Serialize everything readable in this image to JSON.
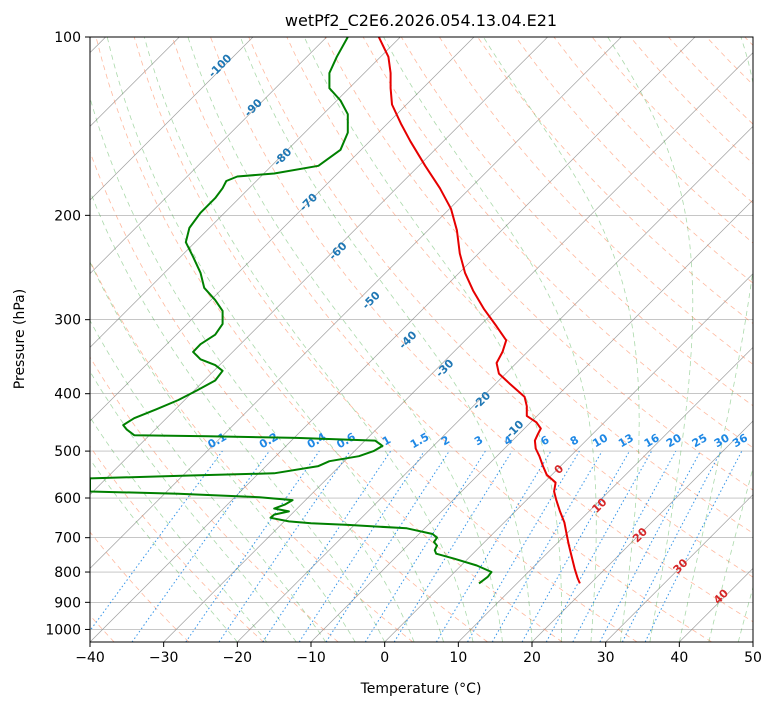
{
  "chart_data": {
    "type": "line",
    "title": "wetPf2_C2E6.2026.054.13.04.E21",
    "xlabel": "Temperature (°C)",
    "ylabel": "Pressure (hPa)",
    "xlim": [
      -40,
      50
    ],
    "ylim": [
      1050,
      100
    ],
    "y_scale": "log",
    "grid": true,
    "x_ticks": [
      "−40",
      "−30",
      "−20",
      "−10",
      "0",
      "10",
      "20",
      "30",
      "40",
      "50"
    ],
    "x_tick_values": [
      -40,
      -30,
      -20,
      -10,
      0,
      10,
      20,
      30,
      40,
      50
    ],
    "y_ticks": [
      "100",
      "200",
      "300",
      "400",
      "500",
      "600",
      "700",
      "800",
      "900",
      "1000"
    ],
    "y_tick_values": [
      100,
      200,
      300,
      400,
      500,
      600,
      700,
      800,
      900,
      1000
    ],
    "colors": {
      "temperature": "#e60000",
      "dewpoint": "#008000",
      "isotherm": "#808080",
      "dry_adiabat": "#ff7f50",
      "moist_adiabat": "#2ca02c",
      "mixing_ratio": "#1e88e5",
      "dry_label": "#1f77b4",
      "moist_label": "#d62728"
    },
    "series": [
      {
        "points": [
          [
            26.5,
            836
          ],
          [
            26.2,
            820
          ],
          [
            25.8,
            790
          ],
          [
            25.4,
            755
          ],
          [
            25.0,
            720
          ],
          [
            24.7,
            690
          ],
          [
            24.4,
            660
          ],
          [
            23.8,
            632
          ],
          [
            23.3,
            605
          ],
          [
            23.0,
            585
          ],
          [
            23.2,
            565
          ],
          [
            22.0,
            548
          ],
          [
            21.5,
            530
          ],
          [
            21.0,
            510
          ],
          [
            20.5,
            495
          ],
          [
            20.4,
            480
          ],
          [
            20.8,
            468
          ],
          [
            21.2,
            458
          ],
          [
            20.6,
            447
          ],
          [
            19.3,
            436
          ],
          [
            19.3,
            420
          ],
          [
            19.0,
            405
          ],
          [
            17.0,
            385
          ],
          [
            15.5,
            370
          ],
          [
            15.2,
            355
          ],
          [
            16.0,
            340
          ],
          [
            16.5,
            325
          ],
          [
            15.2,
            308
          ],
          [
            13.5,
            288
          ],
          [
            12.0,
            268
          ],
          [
            10.9,
            250
          ],
          [
            10.2,
            232
          ],
          [
            9.8,
            212
          ],
          [
            9.0,
            195
          ],
          [
            7.5,
            180
          ],
          [
            5.5,
            165
          ],
          [
            3.5,
            150
          ],
          [
            2.2,
            140
          ],
          [
            1.0,
            130
          ],
          [
            0.8,
            122
          ],
          [
            0.8,
            115
          ],
          [
            0.5,
            108
          ],
          [
            -0.8,
            100
          ]
        ]
      },
      {
        "points": [
          [
            12.8,
            836
          ],
          [
            14.0,
            815
          ],
          [
            14.5,
            800
          ],
          [
            12.5,
            780
          ],
          [
            9.5,
            760
          ],
          [
            7.0,
            745
          ],
          [
            6.8,
            735
          ],
          [
            7.1,
            722
          ],
          [
            6.7,
            712
          ],
          [
            7.1,
            700
          ],
          [
            6.5,
            690
          ],
          [
            3.0,
            675
          ],
          [
            -5.0,
            666
          ],
          [
            -10.0,
            662
          ],
          [
            -13.0,
            657
          ],
          [
            -15.5,
            648
          ],
          [
            -15.0,
            640
          ],
          [
            -13.0,
            632
          ],
          [
            -15.0,
            625
          ],
          [
            -13.5,
            615
          ],
          [
            -12.5,
            605
          ],
          [
            -17.0,
            598
          ],
          [
            -28.0,
            590
          ],
          [
            -40.0,
            585
          ],
          [
            -40.0,
            556
          ],
          [
            -27.0,
            550
          ],
          [
            -15.0,
            545
          ],
          [
            -9.0,
            530
          ],
          [
            -7.5,
            520
          ],
          [
            -3.5,
            510
          ],
          [
            -1.5,
            500
          ],
          [
            -0.3,
            490
          ],
          [
            -1.3,
            480
          ],
          [
            -12.0,
            475
          ],
          [
            -24.0,
            472
          ],
          [
            -34.0,
            470
          ],
          [
            -35.0,
            460
          ],
          [
            -35.5,
            452
          ],
          [
            -34.0,
            440
          ],
          [
            -31.0,
            425
          ],
          [
            -28.0,
            410
          ],
          [
            -25.5,
            395
          ],
          [
            -23.0,
            380
          ],
          [
            -22.0,
            366
          ],
          [
            -23.0,
            358
          ],
          [
            -25.0,
            350
          ],
          [
            -26.0,
            340
          ],
          [
            -25.0,
            330
          ],
          [
            -23.0,
            318
          ],
          [
            -22.0,
            305
          ],
          [
            -22.0,
            290
          ],
          [
            -23.0,
            278
          ],
          [
            -24.5,
            265
          ],
          [
            -25.0,
            250
          ],
          [
            -26.0,
            235
          ],
          [
            -27.0,
            222
          ],
          [
            -26.5,
            210
          ],
          [
            -25.0,
            198
          ],
          [
            -23.0,
            187
          ],
          [
            -22.0,
            180
          ],
          [
            -21.5,
            175
          ],
          [
            -20.0,
            172
          ],
          [
            -15.0,
            170
          ],
          [
            -9.0,
            165
          ],
          [
            -6.0,
            155
          ],
          [
            -5.0,
            145
          ],
          [
            -5.0,
            135
          ],
          [
            -6.0,
            128
          ],
          [
            -7.5,
            122
          ],
          [
            -7.5,
            115
          ],
          [
            -6.5,
            108
          ],
          [
            -5.0,
            100
          ]
        ]
      }
    ],
    "dry_adiabat_labels": [
      {
        "text": "-100",
        "x": -22.0,
        "y": 113
      },
      {
        "text": "-90",
        "x": -17.5,
        "y": 133
      },
      {
        "text": "-80",
        "x": -13.5,
        "y": 161
      },
      {
        "text": "-70",
        "x": -10.0,
        "y": 192
      },
      {
        "text": "-60",
        "x": -6.0,
        "y": 232
      },
      {
        "text": "-50",
        "x": -1.5,
        "y": 281
      },
      {
        "text": "-40",
        "x": 3.5,
        "y": 328
      },
      {
        "text": "-30",
        "x": 8.5,
        "y": 366
      },
      {
        "text": "-20",
        "x": 13.5,
        "y": 415
      },
      {
        "text": "-10",
        "x": 18.0,
        "y": 464
      }
    ],
    "moist_adiabat_labels": [
      {
        "text": "0",
        "x": 24.0,
        "y": 542
      },
      {
        "text": "10",
        "x": 29.5,
        "y": 624
      },
      {
        "text": "20",
        "x": 35.0,
        "y": 700
      },
      {
        "text": "30",
        "x": 40.5,
        "y": 790
      },
      {
        "text": "40",
        "x": 46.0,
        "y": 889
      }
    ],
    "mixing_ratio_labels": [
      {
        "text": "0.1",
        "x": -22.5,
        "y": 486
      },
      {
        "text": "0.2",
        "x": -15.5,
        "y": 486
      },
      {
        "text": "0.4",
        "x": -9.0,
        "y": 486
      },
      {
        "text": "0.6",
        "x": -5.0,
        "y": 486
      },
      {
        "text": "1",
        "x": 0.5,
        "y": 486
      },
      {
        "text": "1.5",
        "x": 5.0,
        "y": 486
      },
      {
        "text": "2",
        "x": 8.5,
        "y": 486
      },
      {
        "text": "3",
        "x": 13.0,
        "y": 486
      },
      {
        "text": "4",
        "x": 17.0,
        "y": 486
      },
      {
        "text": "6",
        "x": 22.0,
        "y": 486
      },
      {
        "text": "8",
        "x": 26.0,
        "y": 486
      },
      {
        "text": "10",
        "x": 29.5,
        "y": 486
      },
      {
        "text": "13",
        "x": 33.0,
        "y": 486
      },
      {
        "text": "16",
        "x": 36.5,
        "y": 486
      },
      {
        "text": "20",
        "x": 39.5,
        "y": 486
      },
      {
        "text": "25",
        "x": 43.0,
        "y": 486
      },
      {
        "text": "30",
        "x": 46.0,
        "y": 486
      },
      {
        "text": "36",
        "x": 48.5,
        "y": 486
      }
    ]
  }
}
